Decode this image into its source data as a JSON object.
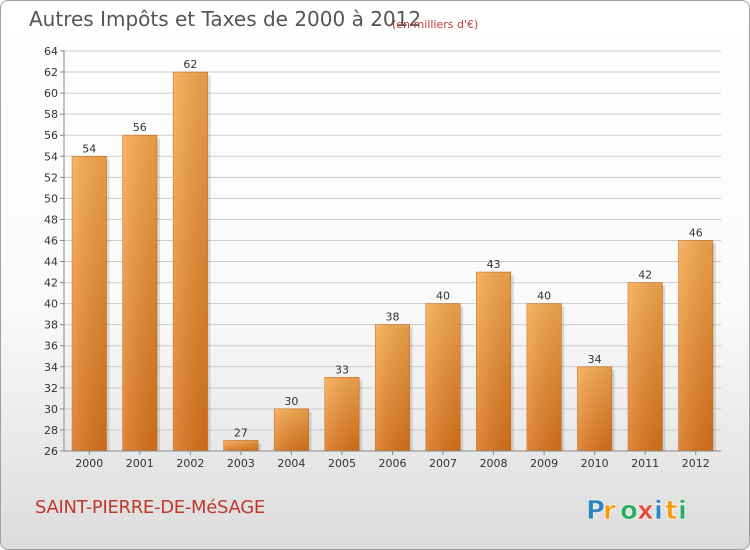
{
  "header": {
    "title": "Autres Impôts et Taxes de 2000 à 2012",
    "subtitle": "(en milliers d'€)"
  },
  "footer": {
    "commune": "SAINT-PIERRE-DE-MéSAGE",
    "logo_text": "Proxiti",
    "logo_letters": [
      {
        "ch": "P",
        "color": "#2e86c1"
      },
      {
        "ch": "r",
        "color": "#f39c12"
      },
      {
        "ch": "o",
        "color": "#27ae60"
      },
      {
        "ch": "x",
        "color": "#e74c3c"
      },
      {
        "ch": "i",
        "color": "#2e86c1"
      },
      {
        "ch": "t",
        "color": "#f39c12"
      },
      {
        "ch": "i",
        "color": "#27ae60"
      }
    ]
  },
  "colors": {
    "bar_light": "#f7a94e",
    "bar_dark": "#d9731a",
    "grid": "#cccccc",
    "axis_text": "#333333"
  },
  "chart_data": {
    "type": "bar",
    "categories": [
      "2000",
      "2001",
      "2002",
      "2003",
      "2004",
      "2005",
      "2006",
      "2007",
      "2008",
      "2009",
      "2010",
      "2011",
      "2012"
    ],
    "values": [
      54,
      56,
      62,
      27,
      30,
      33,
      38,
      40,
      43,
      40,
      34,
      42,
      46
    ],
    "ylim": [
      26,
      64
    ],
    "yticks": [
      26,
      28,
      30,
      32,
      34,
      36,
      38,
      40,
      42,
      44,
      46,
      48,
      50,
      52,
      54,
      56,
      58,
      60,
      62,
      64
    ],
    "grid": true,
    "data_labels": true
  }
}
